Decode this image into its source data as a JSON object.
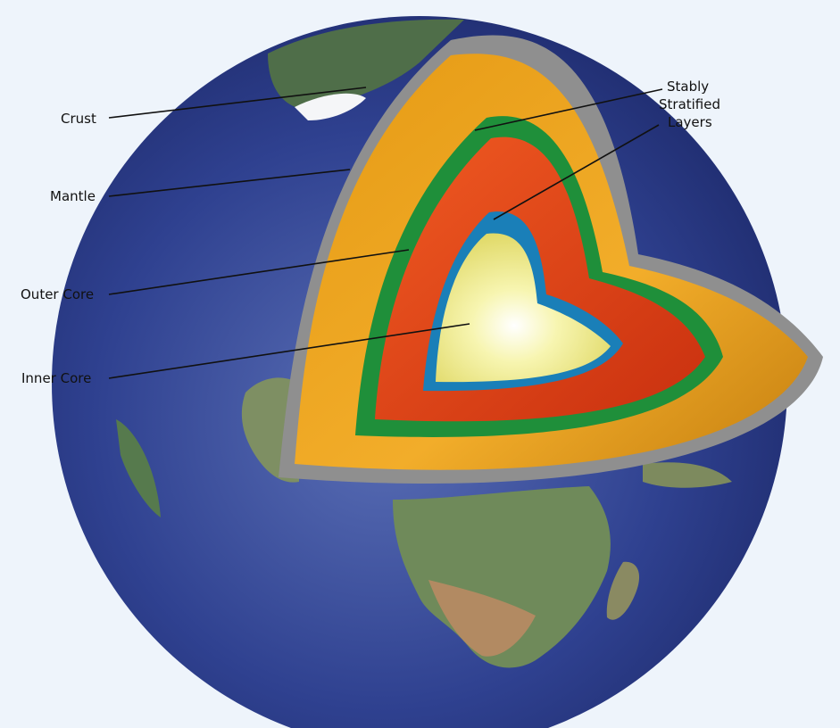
{
  "labels": {
    "crust": "Crust",
    "mantle": "Mantle",
    "outer_core": "Outer Core",
    "inner_core": "Inner Core",
    "stably_stratified": [
      "Stably",
      "Stratified",
      "Layers"
    ]
  },
  "colors": {
    "background": "#eef4fb",
    "ocean": "#2b3d86",
    "land": "#5f7f52",
    "desert": "#b08a62",
    "crust": "#8e8e8e",
    "mantle": "#f0a020",
    "stratified_layer": "#1f8f3a",
    "outer_core": "#e8431b",
    "lower_stratified_layer": "#1a7fb8",
    "inner_core": "#f3ef7a"
  }
}
